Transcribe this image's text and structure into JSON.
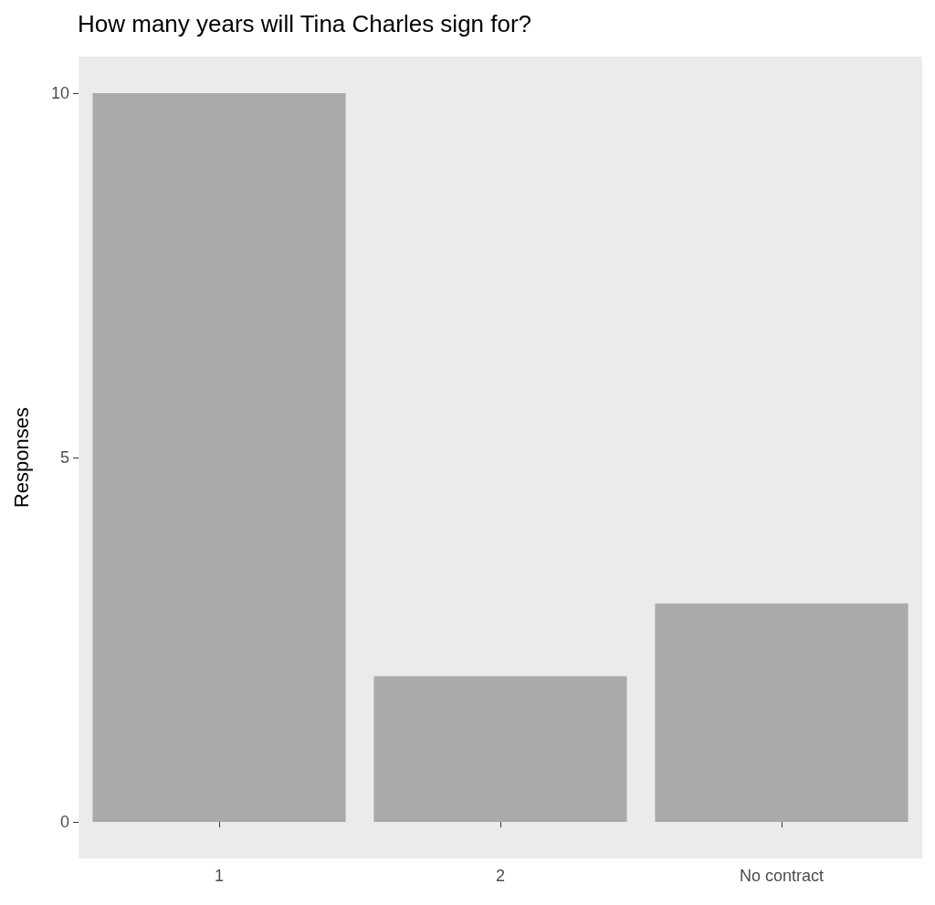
{
  "chart_data": {
    "type": "bar",
    "title": "How many years will Tina Charles sign for?",
    "ylabel": "Responses",
    "categories": [
      "1",
      "2",
      "No contract"
    ],
    "values": [
      10,
      2,
      3
    ],
    "color": "#aaaaaa",
    "ylim": [
      -0.5,
      10.5
    ],
    "yticks": [
      0,
      5,
      10
    ],
    "grid": false
  }
}
